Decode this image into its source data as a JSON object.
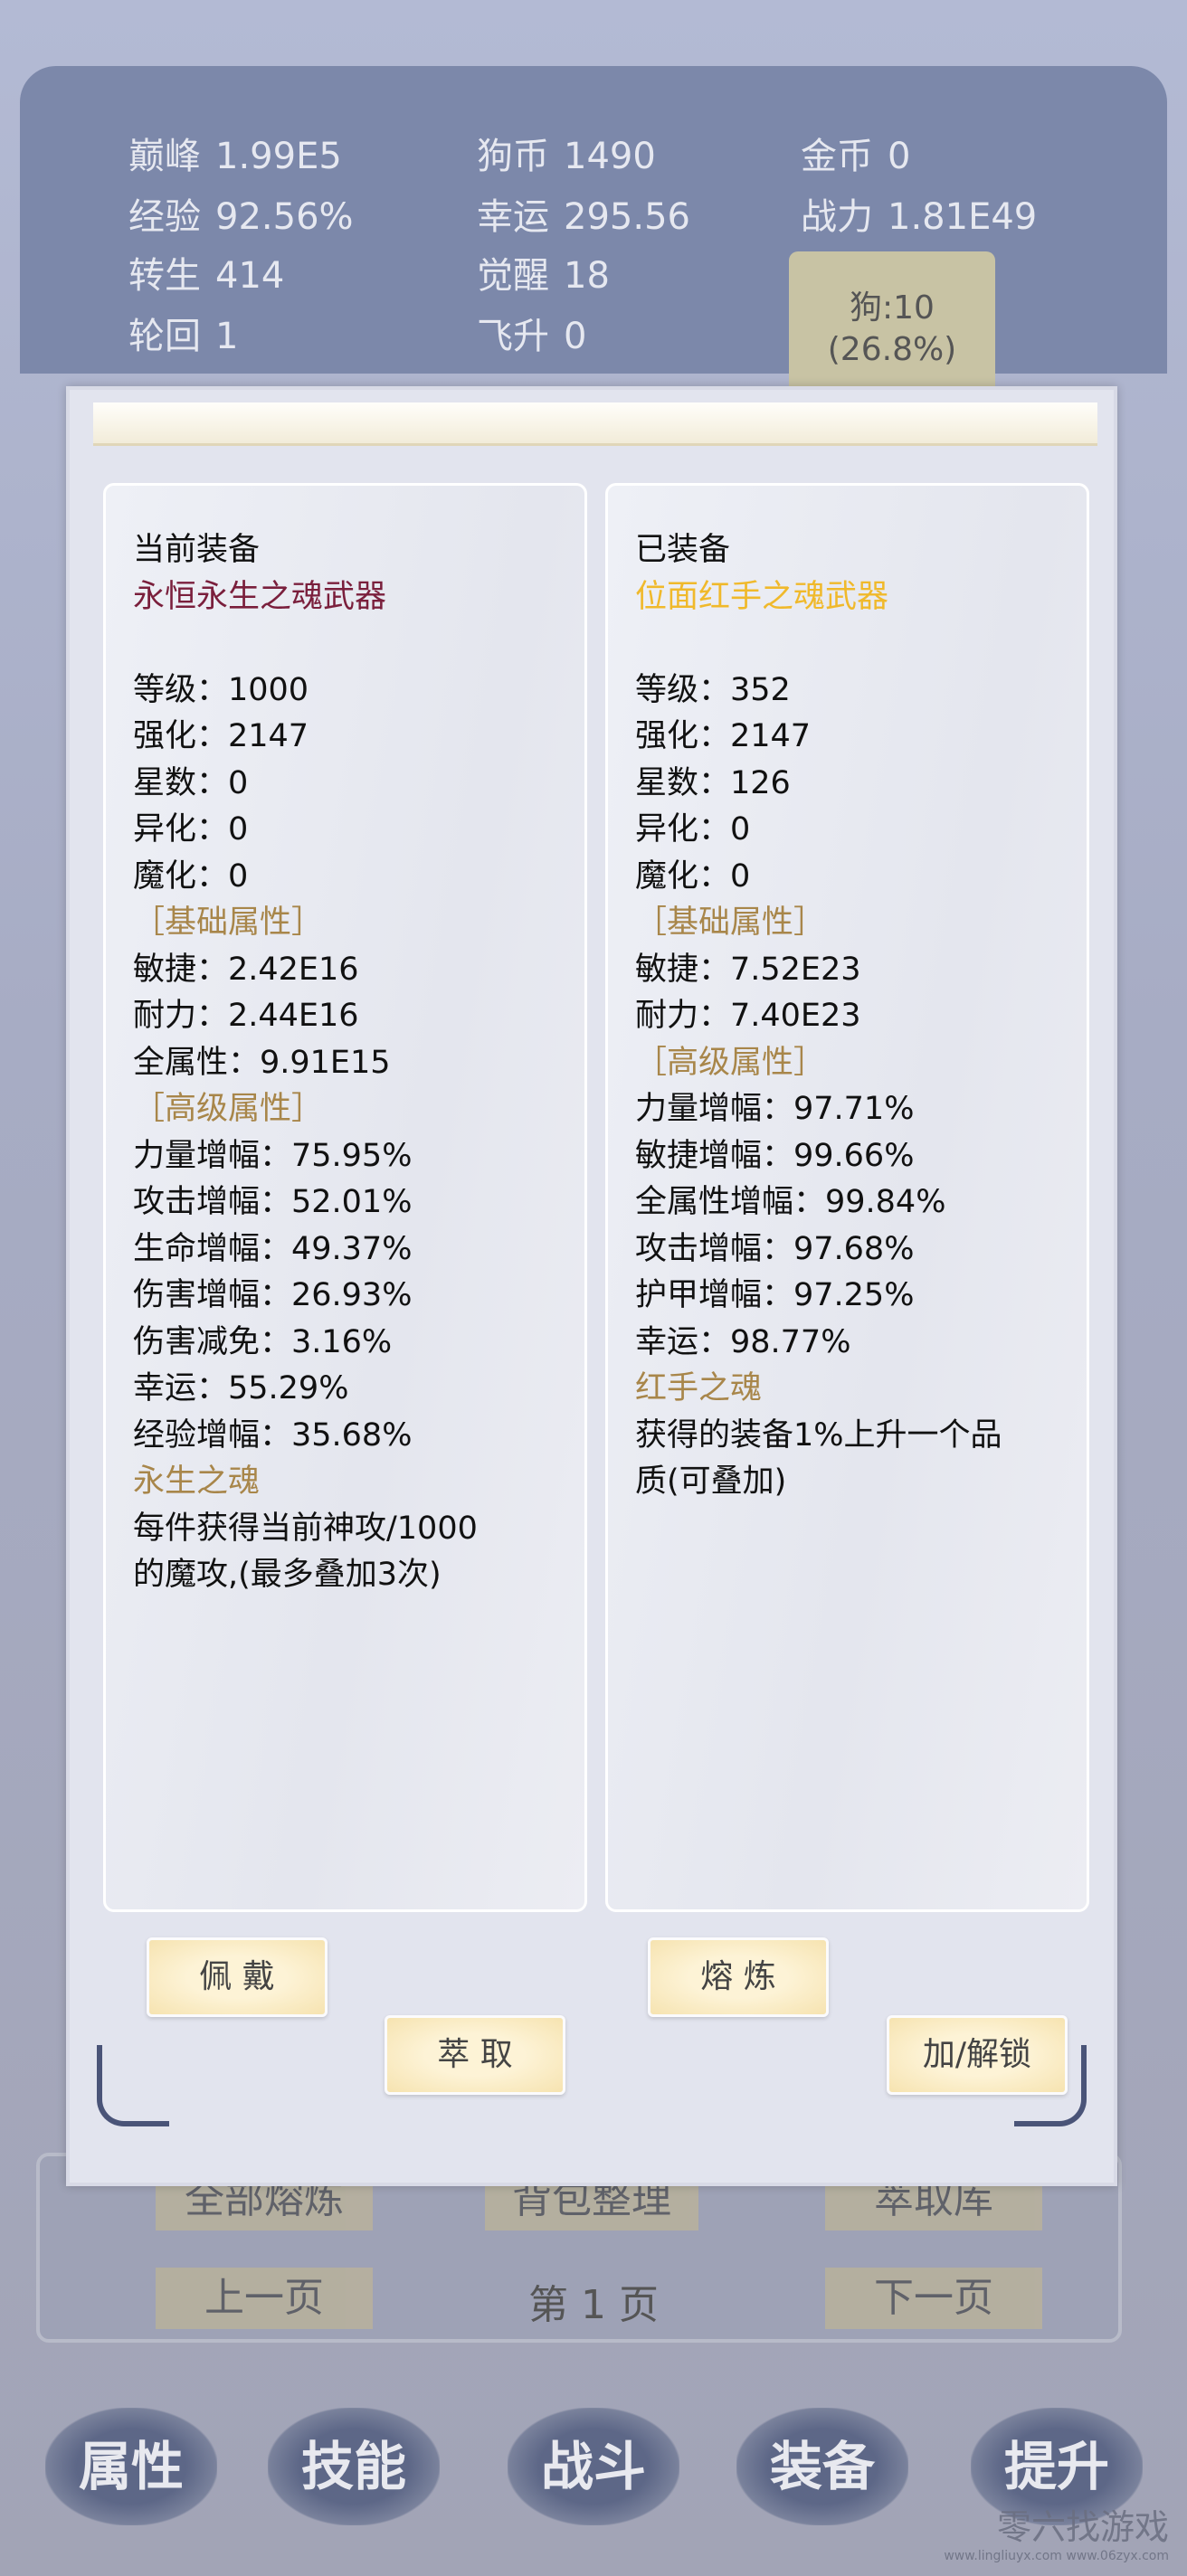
{
  "stats": [
    {
      "label": "巅峰",
      "value": "1.99E5"
    },
    {
      "label": "狗币",
      "value": "1490"
    },
    {
      "label": "金币",
      "value": "0"
    },
    {
      "label": "经验",
      "value": "92.56%"
    },
    {
      "label": "幸运",
      "value": "295.56"
    },
    {
      "label": "战力",
      "value": "1.81E49"
    },
    {
      "label": "转生",
      "value": "414"
    },
    {
      "label": "觉醒",
      "value": "18"
    },
    {
      "label": "轮回",
      "value": "1"
    },
    {
      "label": "飞升",
      "value": "0"
    }
  ],
  "dog": {
    "line1": "狗:10",
    "line2": "(26.8%)"
  },
  "left_card": {
    "title": "当前装备",
    "name": "永恒永生之魂武器",
    "name_color": "#7a1f3c",
    "basic": [
      "等级：1000",
      "强化：2147",
      "星数：0",
      "异化：0",
      "魔化：0"
    ],
    "basic_header": "［基础属性］",
    "basic_attrs": [
      "敏捷：2.42E16",
      "耐力：2.44E16",
      "全属性：9.91E15"
    ],
    "adv_header": "［高级属性］",
    "adv_attrs": [
      "力量增幅：75.95%",
      "攻击增幅：52.01%",
      "生命增幅：49.37%",
      "伤害增幅：26.93%",
      "伤害减免：3.16%",
      "幸运：55.29%",
      "经验增幅：35.68%"
    ],
    "special_title": "永生之魂",
    "special_desc": [
      "每件获得当前神攻/1000",
      "的魔攻,(最多叠加3次)"
    ]
  },
  "right_card": {
    "title": "已装备",
    "name": "位面红手之魂武器",
    "name_color": "#f0b92b",
    "basic": [
      "等级：352",
      "强化：2147",
      "星数：126",
      "异化：0",
      "魔化：0"
    ],
    "basic_header": "［基础属性］",
    "basic_attrs": [
      "敏捷：7.52E23",
      "耐力：7.40E23"
    ],
    "adv_header": "［高级属性］",
    "adv_attrs": [
      "力量增幅：97.71%",
      "敏捷增幅：99.66%",
      "全属性增幅：99.84%",
      "攻击增幅：97.68%",
      "护甲增幅：97.25%",
      "幸运：98.77%"
    ],
    "special_title": "红手之魂",
    "special_desc": [
      "获得的装备1%上升一个品",
      "质(可叠加)"
    ]
  },
  "buttons": {
    "wear": "佩 戴",
    "smelt": "熔 炼",
    "extract": "萃 取",
    "lock": "加/解锁"
  },
  "bag": {
    "smelt_all": "全部熔炼",
    "sort": "背包整理",
    "extract_store": "萃取库",
    "prev": "上一页",
    "page": "第 1 页",
    "next": "下一页"
  },
  "nav": [
    "属性",
    "技能",
    "战斗",
    "装备",
    "提升"
  ],
  "watermark": {
    "text": "零六找游戏",
    "url": "www.lingliuyx.com  www.06zyx.com"
  }
}
